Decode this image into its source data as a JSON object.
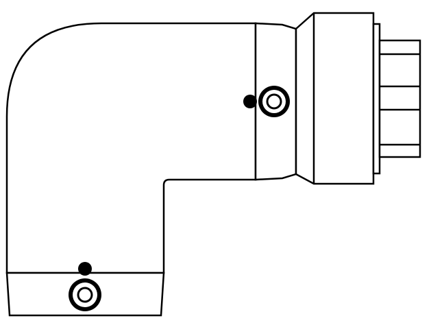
{
  "drawing": {
    "subject": "elbow-connector-side-view",
    "stroke_color": "#000000",
    "fill_color": "#ffffff"
  }
}
